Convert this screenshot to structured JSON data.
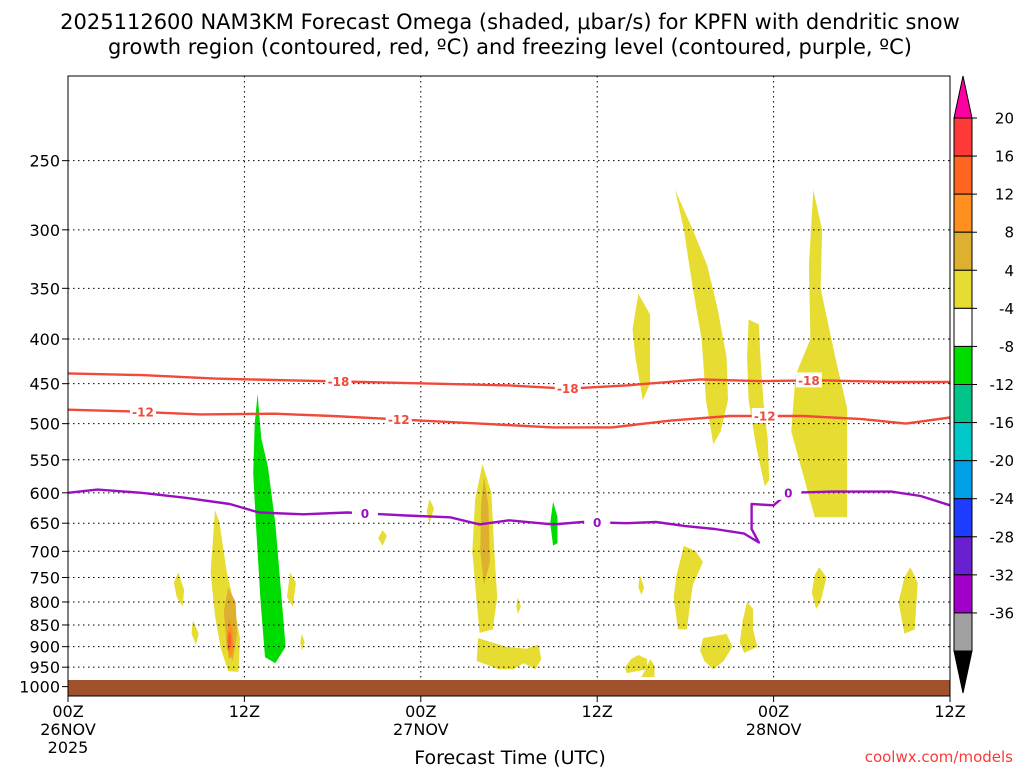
{
  "chart_data": {
    "type": "time-height cross-section (shaded omega with contours)",
    "title_line1": "2025112600 NAM3KM Forecast Omega (shaded, μbar/s) for KPFN with dendritic snow",
    "title_line2": "growth region (contoured, red, ºC) and freezing level (contoured, purple, ºC)",
    "xlabel": "Forecast Time (UTC)",
    "ylabel": "",
    "credit": "coolwx.com/models",
    "x_range_hours": [
      0,
      60
    ],
    "x_ticks": [
      {
        "hour": 0,
        "line1": "00Z",
        "line2": "26NOV",
        "line3": "2025"
      },
      {
        "hour": 12,
        "line1": "12Z",
        "line2": "",
        "line3": ""
      },
      {
        "hour": 24,
        "line1": "00Z",
        "line2": "27NOV",
        "line3": ""
      },
      {
        "hour": 36,
        "line1": "12Z",
        "line2": "",
        "line3": ""
      },
      {
        "hour": 48,
        "line1": "00Z",
        "line2": "28NOV",
        "line3": ""
      },
      {
        "hour": 60,
        "line1": "12Z",
        "line2": "",
        "line3": ""
      }
    ],
    "y_axis": "pressure (mb), log scale, decreasing upward",
    "y_range_mb": [
      1025,
      200
    ],
    "y_ticks": [
      250,
      300,
      350,
      400,
      450,
      500,
      550,
      600,
      650,
      700,
      750,
      800,
      850,
      900,
      950,
      1000
    ],
    "colorbar": {
      "labels": [
        "20",
        "16",
        "12",
        "8",
        "4",
        "-4",
        "-8",
        "-12",
        "-16",
        "-20",
        "-24",
        "-28",
        "-32",
        "-36"
      ],
      "colors": [
        "#ff00a0",
        "#ff3838",
        "#ff6420",
        "#ff9020",
        "#ddb030",
        "#e6dc32",
        "#ffffff",
        "#00dc00",
        "#00c48a",
        "#00c8c8",
        "#00a0e6",
        "#1e3cff",
        "#6820d0",
        "#a000c8",
        "#a0a0a0",
        "#000000"
      ]
    },
    "contours": [
      {
        "name": "-18",
        "color": "#f04a3a",
        "label": "-18",
        "label_hours": [
          18.4,
          34.0,
          50.4
        ],
        "points": [
          [
            0,
            438
          ],
          [
            5,
            440
          ],
          [
            10,
            444
          ],
          [
            15,
            446
          ],
          [
            20,
            448
          ],
          [
            25,
            450
          ],
          [
            30,
            452
          ],
          [
            34,
            456
          ],
          [
            38,
            452
          ],
          [
            43,
            445
          ],
          [
            47,
            447
          ],
          [
            51,
            446
          ],
          [
            56,
            448
          ],
          [
            60,
            448
          ]
        ]
      },
      {
        "name": "-12",
        "color": "#f04a3a",
        "label": "-12",
        "label_hours": [
          5.1,
          22.5,
          47.4
        ],
        "points": [
          [
            0,
            482
          ],
          [
            4,
            484
          ],
          [
            9,
            488
          ],
          [
            14,
            487
          ],
          [
            18,
            490
          ],
          [
            23,
            495
          ],
          [
            28,
            500
          ],
          [
            33,
            505
          ],
          [
            37,
            505
          ],
          [
            41,
            496
          ],
          [
            45,
            490
          ],
          [
            50,
            490
          ],
          [
            54,
            494
          ],
          [
            57,
            500
          ],
          [
            60,
            492
          ]
        ]
      },
      {
        "name": "0",
        "color": "#9a10c0",
        "label": "0",
        "label_hours": [
          20.2,
          36.0,
          49.0
        ],
        "points": [
          [
            0,
            600
          ],
          [
            2,
            595
          ],
          [
            5,
            600
          ],
          [
            8,
            608
          ],
          [
            11,
            618
          ],
          [
            13,
            632
          ],
          [
            16,
            635
          ],
          [
            19,
            632
          ],
          [
            23,
            637
          ],
          [
            26,
            640
          ],
          [
            28,
            652
          ],
          [
            30,
            645
          ],
          [
            33,
            652
          ],
          [
            35,
            648
          ],
          [
            38,
            650
          ],
          [
            40,
            648
          ],
          [
            42,
            655
          ],
          [
            44,
            660
          ],
          [
            46,
            668
          ],
          [
            47,
            684
          ],
          [
            46.5,
            660
          ],
          [
            46.5,
            618
          ],
          [
            48,
            620
          ],
          [
            49,
            600
          ],
          [
            52,
            598
          ],
          [
            56,
            598
          ],
          [
            58,
            605
          ],
          [
            60,
            620
          ]
        ]
      }
    ],
    "shaded_regions": [
      {
        "value_range": "4 to 8",
        "color": "#e6dc32",
        "points": [
          [
            10.0,
            628
          ],
          [
            10.3,
            648
          ],
          [
            10.8,
            740
          ],
          [
            11.2,
            790
          ],
          [
            11.7,
            880
          ],
          [
            11.6,
            962
          ],
          [
            10.9,
            960
          ],
          [
            10.4,
            905
          ],
          [
            10.0,
            830
          ],
          [
            9.7,
            740
          ]
        ]
      },
      {
        "value_range": "8 to 12",
        "color": "#ddb030",
        "points": [
          [
            10.9,
            770
          ],
          [
            11.4,
            800
          ],
          [
            11.5,
            870
          ],
          [
            11.2,
            935
          ],
          [
            10.8,
            905
          ],
          [
            10.6,
            820
          ]
        ]
      },
      {
        "value_range": "12 to 16",
        "color": "#ff9020",
        "points": [
          [
            10.95,
            835
          ],
          [
            11.2,
            860
          ],
          [
            11.25,
            910
          ],
          [
            10.95,
            930
          ],
          [
            10.8,
            880
          ]
        ]
      },
      {
        "value_range": "16 to 20",
        "color": "#ff6420",
        "points": [
          [
            10.95,
            862
          ],
          [
            11.1,
            875
          ],
          [
            11.1,
            900
          ],
          [
            10.9,
            910
          ],
          [
            10.85,
            885
          ]
        ]
      },
      {
        "value_range": "-4 to -8",
        "color": "#00dc00",
        "points": [
          [
            12.9,
            462
          ],
          [
            13.15,
            520
          ],
          [
            13.6,
            560
          ],
          [
            14.1,
            650
          ],
          [
            14.5,
            780
          ],
          [
            14.8,
            900
          ],
          [
            14.1,
            940
          ],
          [
            13.4,
            925
          ],
          [
            13.1,
            800
          ],
          [
            12.8,
            660
          ],
          [
            12.6,
            570
          ],
          [
            12.7,
            500
          ]
        ]
      },
      {
        "value_range": "4 to 8",
        "color": "#e6dc32",
        "points": [
          [
            28.2,
            556
          ],
          [
            28.8,
            600
          ],
          [
            29.0,
            700
          ],
          [
            29.2,
            790
          ],
          [
            28.9,
            860
          ],
          [
            28.0,
            868
          ],
          [
            27.8,
            800
          ],
          [
            27.5,
            700
          ],
          [
            27.7,
            610
          ]
        ]
      },
      {
        "value_range": "8 to 12",
        "color": "#ddb030",
        "points": [
          [
            28.3,
            575
          ],
          [
            28.6,
            620
          ],
          [
            28.7,
            720
          ],
          [
            28.3,
            765
          ],
          [
            28.05,
            700
          ],
          [
            28.1,
            620
          ]
        ]
      },
      {
        "value_range": "-4 to -8",
        "color": "#00dc00",
        "points": [
          [
            33.0,
            614
          ],
          [
            33.3,
            640
          ],
          [
            33.3,
            685
          ],
          [
            33.0,
            690
          ],
          [
            32.8,
            650
          ]
        ]
      },
      {
        "value_range": "4 to 8",
        "color": "#e6dc32",
        "points": [
          [
            41.3,
            270
          ],
          [
            42.5,
            300
          ],
          [
            43.5,
            330
          ],
          [
            44.2,
            370
          ],
          [
            44.8,
            420
          ],
          [
            44.9,
            470
          ],
          [
            44.4,
            510
          ],
          [
            43.9,
            528
          ],
          [
            43.4,
            470
          ],
          [
            43.1,
            400
          ],
          [
            42.5,
            350
          ],
          [
            41.9,
            300
          ]
        ]
      },
      {
        "value_range": "4 to 8",
        "color": "#e6dc32",
        "points": [
          [
            38.8,
            355
          ],
          [
            39.6,
            375
          ],
          [
            39.6,
            450
          ],
          [
            39.1,
            470
          ],
          [
            38.6,
            420
          ],
          [
            38.4,
            390
          ]
        ]
      },
      {
        "value_range": "4 to 8",
        "color": "#e6dc32",
        "points": [
          [
            46.3,
            380
          ],
          [
            47.0,
            385
          ],
          [
            47.1,
            420
          ],
          [
            47.3,
            470
          ],
          [
            47.6,
            520
          ],
          [
            47.7,
            580
          ],
          [
            47.4,
            590
          ],
          [
            46.8,
            530
          ],
          [
            46.3,
            470
          ],
          [
            46.2,
            420
          ]
        ]
      },
      {
        "value_range": "4 to 8",
        "color": "#e6dc32",
        "points": [
          [
            50.7,
            270
          ],
          [
            51.3,
            300
          ],
          [
            51.2,
            350
          ],
          [
            52.2,
            420
          ],
          [
            53.0,
            480
          ],
          [
            53.0,
            640
          ],
          [
            50.8,
            640
          ],
          [
            49.2,
            510
          ],
          [
            49.5,
            440
          ],
          [
            50.5,
            400
          ],
          [
            50.4,
            330
          ]
        ]
      },
      {
        "value_range": "4 to 8",
        "color": "#e6dc32",
        "points": [
          [
            41.9,
            690
          ],
          [
            42.7,
            700
          ],
          [
            43.2,
            720
          ],
          [
            42.5,
            765
          ],
          [
            42.3,
            810
          ],
          [
            42.1,
            860
          ],
          [
            41.5,
            860
          ],
          [
            41.2,
            790
          ],
          [
            41.4,
            745
          ]
        ]
      },
      {
        "value_range": "4 to 8",
        "color": "#e6dc32",
        "points": [
          [
            43.2,
            880
          ],
          [
            44.8,
            870
          ],
          [
            45.2,
            900
          ],
          [
            44.6,
            935
          ],
          [
            43.9,
            955
          ],
          [
            43.3,
            935
          ],
          [
            43.0,
            910
          ]
        ]
      },
      {
        "value_range": "4 to 8",
        "color": "#e6dc32",
        "points": [
          [
            46.2,
            800
          ],
          [
            46.6,
            815
          ],
          [
            46.6,
            860
          ],
          [
            46.9,
            900
          ],
          [
            46.0,
            915
          ],
          [
            45.7,
            890
          ],
          [
            45.9,
            840
          ]
        ]
      },
      {
        "value_range": "4 to 8",
        "color": "#e6dc32",
        "points": [
          [
            51.1,
            730
          ],
          [
            51.6,
            750
          ],
          [
            51.2,
            800
          ],
          [
            50.9,
            815
          ],
          [
            50.6,
            780
          ],
          [
            50.8,
            745
          ]
        ]
      },
      {
        "value_range": "4 to 8",
        "color": "#e6dc32",
        "points": [
          [
            57.3,
            730
          ],
          [
            57.8,
            760
          ],
          [
            57.6,
            860
          ],
          [
            56.9,
            870
          ],
          [
            56.5,
            800
          ],
          [
            56.9,
            750
          ]
        ]
      },
      {
        "value_range": "4 to 8",
        "color": "#e6dc32",
        "points": [
          [
            39.6,
            930
          ],
          [
            39.9,
            945
          ],
          [
            39.9,
            975
          ],
          [
            39.0,
            975
          ],
          [
            39.3,
            955
          ]
        ]
      },
      {
        "value_range": "4 to 8",
        "color": "#e6dc32",
        "points": [
          [
            7.5,
            740
          ],
          [
            7.9,
            775
          ],
          [
            7.8,
            810
          ],
          [
            7.4,
            790
          ],
          [
            7.2,
            760
          ]
        ]
      },
      {
        "value_range": "4 to 8",
        "color": "#e6dc32",
        "points": [
          [
            8.5,
            840
          ],
          [
            8.9,
            870
          ],
          [
            8.7,
            895
          ],
          [
            8.4,
            870
          ]
        ]
      },
      {
        "value_range": "4 to 8",
        "color": "#e6dc32",
        "points": [
          [
            15.1,
            740
          ],
          [
            15.5,
            760
          ],
          [
            15.3,
            810
          ],
          [
            14.9,
            790
          ]
        ]
      },
      {
        "value_range": "4 to 8",
        "color": "#e6dc32",
        "points": [
          [
            15.9,
            870
          ],
          [
            16.1,
            890
          ],
          [
            15.9,
            910
          ],
          [
            15.8,
            890
          ]
        ]
      },
      {
        "value_range": "4 to 8",
        "color": "#e6dc32",
        "points": [
          [
            24.6,
            610
          ],
          [
            24.9,
            625
          ],
          [
            24.6,
            650
          ],
          [
            24.4,
            630
          ]
        ]
      },
      {
        "value_range": "4 to 8",
        "color": "#e6dc32",
        "points": [
          [
            21.4,
            662
          ],
          [
            21.7,
            672
          ],
          [
            21.4,
            690
          ],
          [
            21.1,
            676
          ]
        ]
      },
      {
        "value_range": "4 to 8",
        "color": "#e6dc32",
        "points": [
          [
            30.6,
            790
          ],
          [
            30.8,
            810
          ],
          [
            30.6,
            825
          ],
          [
            30.5,
            810
          ]
        ]
      },
      {
        "value_range": "4 to 8",
        "color": "#e6dc32",
        "points": [
          [
            27.9,
            880
          ],
          [
            29.8,
            900
          ],
          [
            31.2,
            905
          ],
          [
            32.0,
            895
          ],
          [
            32.2,
            930
          ],
          [
            31.8,
            955
          ],
          [
            31.0,
            940
          ],
          [
            30.3,
            955
          ],
          [
            29.3,
            955
          ],
          [
            28.6,
            945
          ],
          [
            27.8,
            935
          ]
        ]
      },
      {
        "value_range": "4 to 8",
        "color": "#e6dc32",
        "points": [
          [
            38.3,
            930
          ],
          [
            38.8,
            920
          ],
          [
            39.4,
            930
          ],
          [
            39.4,
            955
          ],
          [
            38.0,
            965
          ],
          [
            37.9,
            950
          ]
        ]
      },
      {
        "value_range": "4 to 8",
        "color": "#e6dc32",
        "points": [
          [
            38.9,
            745
          ],
          [
            39.2,
            770
          ],
          [
            39.0,
            785
          ],
          [
            38.8,
            770
          ]
        ]
      }
    ],
    "ground_color": "#a0522d"
  }
}
